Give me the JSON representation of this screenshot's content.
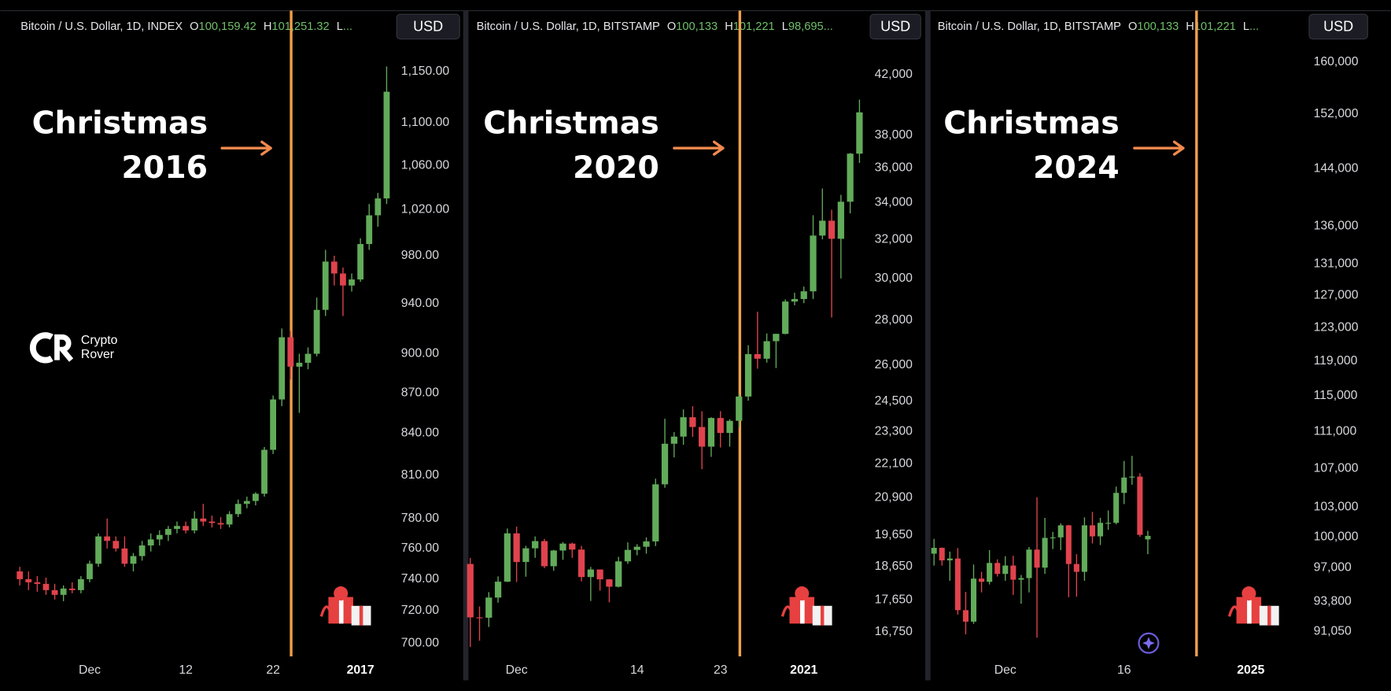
{
  "watermark": [
    "Crypto",
    "Rover"
  ],
  "chart_data": [
    {
      "type": "candlestick",
      "title": "Bitcoin / U.S. Dollar, 1D, INDEX",
      "ohlc_readout": [
        {
          "key": "O",
          "value": "100,159.42"
        },
        {
          "key": "H",
          "value": "101,251.32"
        },
        {
          "key": "L",
          "value": "..."
        }
      ],
      "currency": "USD",
      "annotation": [
        "Christmas",
        "2016"
      ],
      "categories": [
        null,
        null,
        null,
        null,
        null,
        null,
        null,
        null,
        "Dec",
        null,
        null,
        null,
        null,
        null,
        null,
        null,
        null,
        null,
        null,
        "12",
        null,
        null,
        null,
        null,
        null,
        null,
        null,
        null,
        null,
        "22",
        null,
        null,
        null,
        null,
        null,
        null,
        null,
        null,
        null,
        "2017",
        null,
        null,
        null
      ],
      "open": [
        745,
        740,
        738,
        737,
        733,
        730,
        734,
        733,
        740,
        750,
        768,
        765,
        760,
        750,
        755,
        762,
        766,
        769,
        773,
        775,
        772,
        780,
        778,
        777,
        776,
        783,
        790,
        792,
        797,
        828,
        865,
        913,
        890,
        893,
        900,
        935,
        975,
        965,
        955,
        960,
        990,
        1015,
        1030
      ],
      "high": [
        748,
        745,
        742,
        741,
        737,
        736,
        738,
        742,
        752,
        770,
        780,
        768,
        768,
        757,
        765,
        770,
        772,
        775,
        778,
        778,
        785,
        790,
        782,
        781,
        785,
        793,
        795,
        798,
        830,
        868,
        920,
        918,
        900,
        905,
        945,
        985,
        980,
        970,
        965,
        995,
        1025,
        1035,
        1155
      ],
      "low": [
        736,
        733,
        732,
        730,
        727,
        726,
        731,
        731,
        738,
        748,
        760,
        758,
        748,
        745,
        752,
        758,
        762,
        765,
        770,
        770,
        770,
        775,
        774,
        773,
        774,
        781,
        787,
        789,
        795,
        825,
        860,
        880,
        855,
        888,
        898,
        930,
        955,
        930,
        950,
        958,
        985,
        1005,
        1025
      ],
      "close": [
        740,
        738,
        737,
        733,
        730,
        734,
        733,
        740,
        750,
        768,
        765,
        760,
        750,
        755,
        762,
        766,
        769,
        773,
        775,
        772,
        780,
        778,
        777,
        776,
        783,
        790,
        792,
        797,
        828,
        865,
        913,
        890,
        893,
        900,
        935,
        975,
        965,
        955,
        960,
        990,
        1015,
        1030,
        1130
      ],
      "ylim": [
        692,
        1182
      ],
      "log_scale": true,
      "up_color": "#62ab5a",
      "down_color": "#e0434d",
      "yticks": [
        {
          "value": 1150,
          "label": "1,150.00"
        },
        {
          "value": 1100,
          "label": "1,100.00"
        },
        {
          "value": 1060,
          "label": "1,060.00"
        },
        {
          "value": 1020,
          "label": "1,020.00"
        },
        {
          "value": 980,
          "label": "980.00"
        },
        {
          "value": 940,
          "label": "940.00"
        },
        {
          "value": 900,
          "label": "900.00"
        },
        {
          "value": 870,
          "label": "870.00"
        },
        {
          "value": 840,
          "label": "840.00"
        },
        {
          "value": 810,
          "label": "810.00"
        },
        {
          "value": 780,
          "label": "780.00"
        },
        {
          "value": 760,
          "label": "760.00"
        },
        {
          "value": 740,
          "label": "740.00"
        },
        {
          "value": 720,
          "label": "720.00"
        },
        {
          "value": 700,
          "label": "700.00"
        }
      ]
    },
    {
      "type": "candlestick",
      "title": "Bitcoin / U.S. Dollar, 1D, BITSTAMP",
      "ohlc_readout": [
        {
          "key": "O",
          "value": "100,133"
        },
        {
          "key": "H",
          "value": "101,221"
        },
        {
          "key": "L",
          "value": "98,695..."
        }
      ],
      "currency": "USD",
      "annotation": [
        "Christmas",
        "2020"
      ],
      "categories": [
        null,
        null,
        null,
        null,
        null,
        "Dec",
        null,
        null,
        null,
        null,
        null,
        null,
        null,
        null,
        null,
        null,
        null,
        null,
        "14",
        null,
        null,
        null,
        null,
        null,
        null,
        null,
        null,
        "23",
        null,
        null,
        null,
        null,
        null,
        null,
        null,
        null,
        "2021",
        null,
        null,
        null,
        null,
        null,
        null
      ],
      "open": [
        18730,
        17150,
        17140,
        17720,
        18190,
        19700,
        18790,
        19220,
        19450,
        18660,
        19150,
        19370,
        19180,
        18330,
        18560,
        18260,
        18040,
        18810,
        19170,
        19270,
        19440,
        21360,
        22840,
        23110,
        23860,
        23480,
        22730,
        23830,
        23250,
        23720,
        24690,
        26480,
        26280,
        27050,
        27380,
        28880,
        29000,
        29370,
        32200,
        33000,
        32030,
        34050,
        36860
      ],
      "high": [
        18920,
        17460,
        17880,
        18350,
        19860,
        19920,
        19300,
        19600,
        19520,
        19170,
        19420,
        19400,
        19300,
        18640,
        18560,
        18270,
        18950,
        19410,
        19350,
        19570,
        21560,
        23800,
        23280,
        24170,
        24300,
        24100,
        23860,
        24100,
        23780,
        24800,
        26870,
        28400,
        27400,
        27380,
        28980,
        29300,
        29600,
        33300,
        34800,
        33600,
        34440,
        36900,
        40300
      ],
      "low": [
        16330,
        16500,
        16880,
        17570,
        18180,
        18180,
        18340,
        18920,
        18600,
        18520,
        18860,
        18920,
        18200,
        17620,
        17920,
        17580,
        18020,
        18730,
        19000,
        19050,
        19290,
        21240,
        22330,
        22800,
        23100,
        21900,
        22350,
        22700,
        22730,
        23460,
        24520,
        25850,
        26110,
        25880,
        27360,
        28700,
        28800,
        29000,
        32000,
        28130,
        30000,
        33400,
        36300
      ],
      "close": [
        17150,
        17140,
        17720,
        18190,
        19700,
        18790,
        19220,
        19450,
        18660,
        19150,
        19370,
        19180,
        18330,
        18560,
        18260,
        18040,
        18810,
        19170,
        19270,
        19440,
        21360,
        22840,
        23110,
        23860,
        23480,
        22730,
        23830,
        23250,
        23720,
        24690,
        26480,
        26280,
        27050,
        27380,
        28880,
        29000,
        29370,
        32200,
        33000,
        32030,
        34050,
        36860,
        39460
      ],
      "ylim": [
        16080,
        44470
      ],
      "log_scale": true,
      "up_color": "#62ab5a",
      "down_color": "#e0434d",
      "yticks": [
        {
          "value": 42000,
          "label": "42,000"
        },
        {
          "value": 38000,
          "label": "38,000"
        },
        {
          "value": 36000,
          "label": "36,000"
        },
        {
          "value": 34000,
          "label": "34,000"
        },
        {
          "value": 32000,
          "label": "32,000"
        },
        {
          "value": 30000,
          "label": "30,000"
        },
        {
          "value": 28000,
          "label": "28,000"
        },
        {
          "value": 26000,
          "label": "26,000"
        },
        {
          "value": 24500,
          "label": "24,500"
        },
        {
          "value": 23300,
          "label": "23,300"
        },
        {
          "value": 22100,
          "label": "22,100"
        },
        {
          "value": 20900,
          "label": "20,900"
        },
        {
          "value": 19650,
          "label": "19,650"
        },
        {
          "value": 18650,
          "label": "18,650"
        },
        {
          "value": 17650,
          "label": "17,650"
        },
        {
          "value": 16750,
          "label": "16,750"
        }
      ]
    },
    {
      "type": "candlestick",
      "title": "Bitcoin / U.S. Dollar, 1D, BITSTAMP",
      "ohlc_readout": [
        {
          "key": "O",
          "value": "100,133"
        },
        {
          "key": "H",
          "value": "101,221"
        },
        {
          "key": "L",
          "value": "..."
        }
      ],
      "currency": "USD",
      "annotation": [
        "Christmas",
        "2024"
      ],
      "categories": [
        null,
        null,
        null,
        null,
        null,
        null,
        null,
        null,
        null,
        "Dec",
        null,
        null,
        null,
        null,
        null,
        null,
        null,
        null,
        null,
        null,
        null,
        null,
        null,
        null,
        "16",
        null,
        null,
        null,
        null,
        null,
        null,
        null,
        null,
        null,
        null,
        null,
        null,
        null,
        null,
        null,
        "2025"
      ],
      "open": [
        98350,
        98920,
        97700,
        97880,
        93000,
        91950,
        95950,
        95650,
        97450,
        96400,
        97200,
        95850,
        96000,
        98750,
        97000,
        99900,
        99950,
        101150,
        97350,
        96600,
        101150,
        100050,
        101400,
        101400,
        104450,
        106050,
        106150,
        99750,
        null,
        null,
        null,
        null,
        null,
        null,
        null,
        null,
        null,
        null,
        null,
        null,
        null
      ],
      "high": [
        99800,
        98950,
        98550,
        98900,
        94700,
        97300,
        96600,
        98700,
        97800,
        98100,
        98150,
        96300,
        99000,
        104000,
        101900,
        100500,
        101350,
        101200,
        98300,
        101950,
        102500,
        101900,
        102650,
        105100,
        107800,
        108350,
        106500,
        100600,
        null,
        null,
        null,
        null,
        null,
        null,
        null,
        null,
        null,
        null,
        null,
        null,
        null
      ],
      "low": [
        97200,
        97200,
        95750,
        92600,
        90800,
        91750,
        94650,
        95400,
        96150,
        95750,
        94400,
        93600,
        94650,
        90500,
        96400,
        98800,
        98700,
        94200,
        94250,
        95750,
        99350,
        99200,
        100700,
        101250,
        103300,
        105300,
        100000,
        98300,
        null,
        null,
        null,
        null,
        null,
        null,
        null,
        null,
        null,
        null,
        null,
        null,
        null
      ],
      "close": [
        98920,
        97700,
        97880,
        93000,
        91950,
        95950,
        95650,
        97450,
        96400,
        97200,
        95850,
        96000,
        98750,
        97000,
        99900,
        99950,
        101150,
        97350,
        96600,
        101150,
        100050,
        101400,
        101400,
        104450,
        106050,
        106150,
        100200,
        100100,
        null,
        null,
        null,
        null,
        null,
        null,
        null,
        null,
        null,
        null,
        null,
        null,
        null
      ],
      "ylim": [
        88840,
        163550
      ],
      "log_scale": true,
      "up_color": "#62ab5a",
      "down_color": "#e0434d",
      "yticks": [
        {
          "value": 160000,
          "label": "160,000"
        },
        {
          "value": 152000,
          "label": "152,000"
        },
        {
          "value": 144000,
          "label": "144,000"
        },
        {
          "value": 136000,
          "label": "136,000"
        },
        {
          "value": 131000,
          "label": "131,000"
        },
        {
          "value": 127000,
          "label": "127,000"
        },
        {
          "value": 123000,
          "label": "123,000"
        },
        {
          "value": 119000,
          "label": "119,000"
        },
        {
          "value": 115000,
          "label": "115,000"
        },
        {
          "value": 111000,
          "label": "111,000"
        },
        {
          "value": 107000,
          "label": "107,000"
        },
        {
          "value": 103000,
          "label": "103,000"
        },
        {
          "value": 100000,
          "label": "100,000"
        },
        {
          "value": 97000,
          "label": "97,000"
        },
        {
          "value": 93800,
          "label": "93,800"
        },
        {
          "value": 91050,
          "label": "91,050"
        }
      ]
    }
  ]
}
